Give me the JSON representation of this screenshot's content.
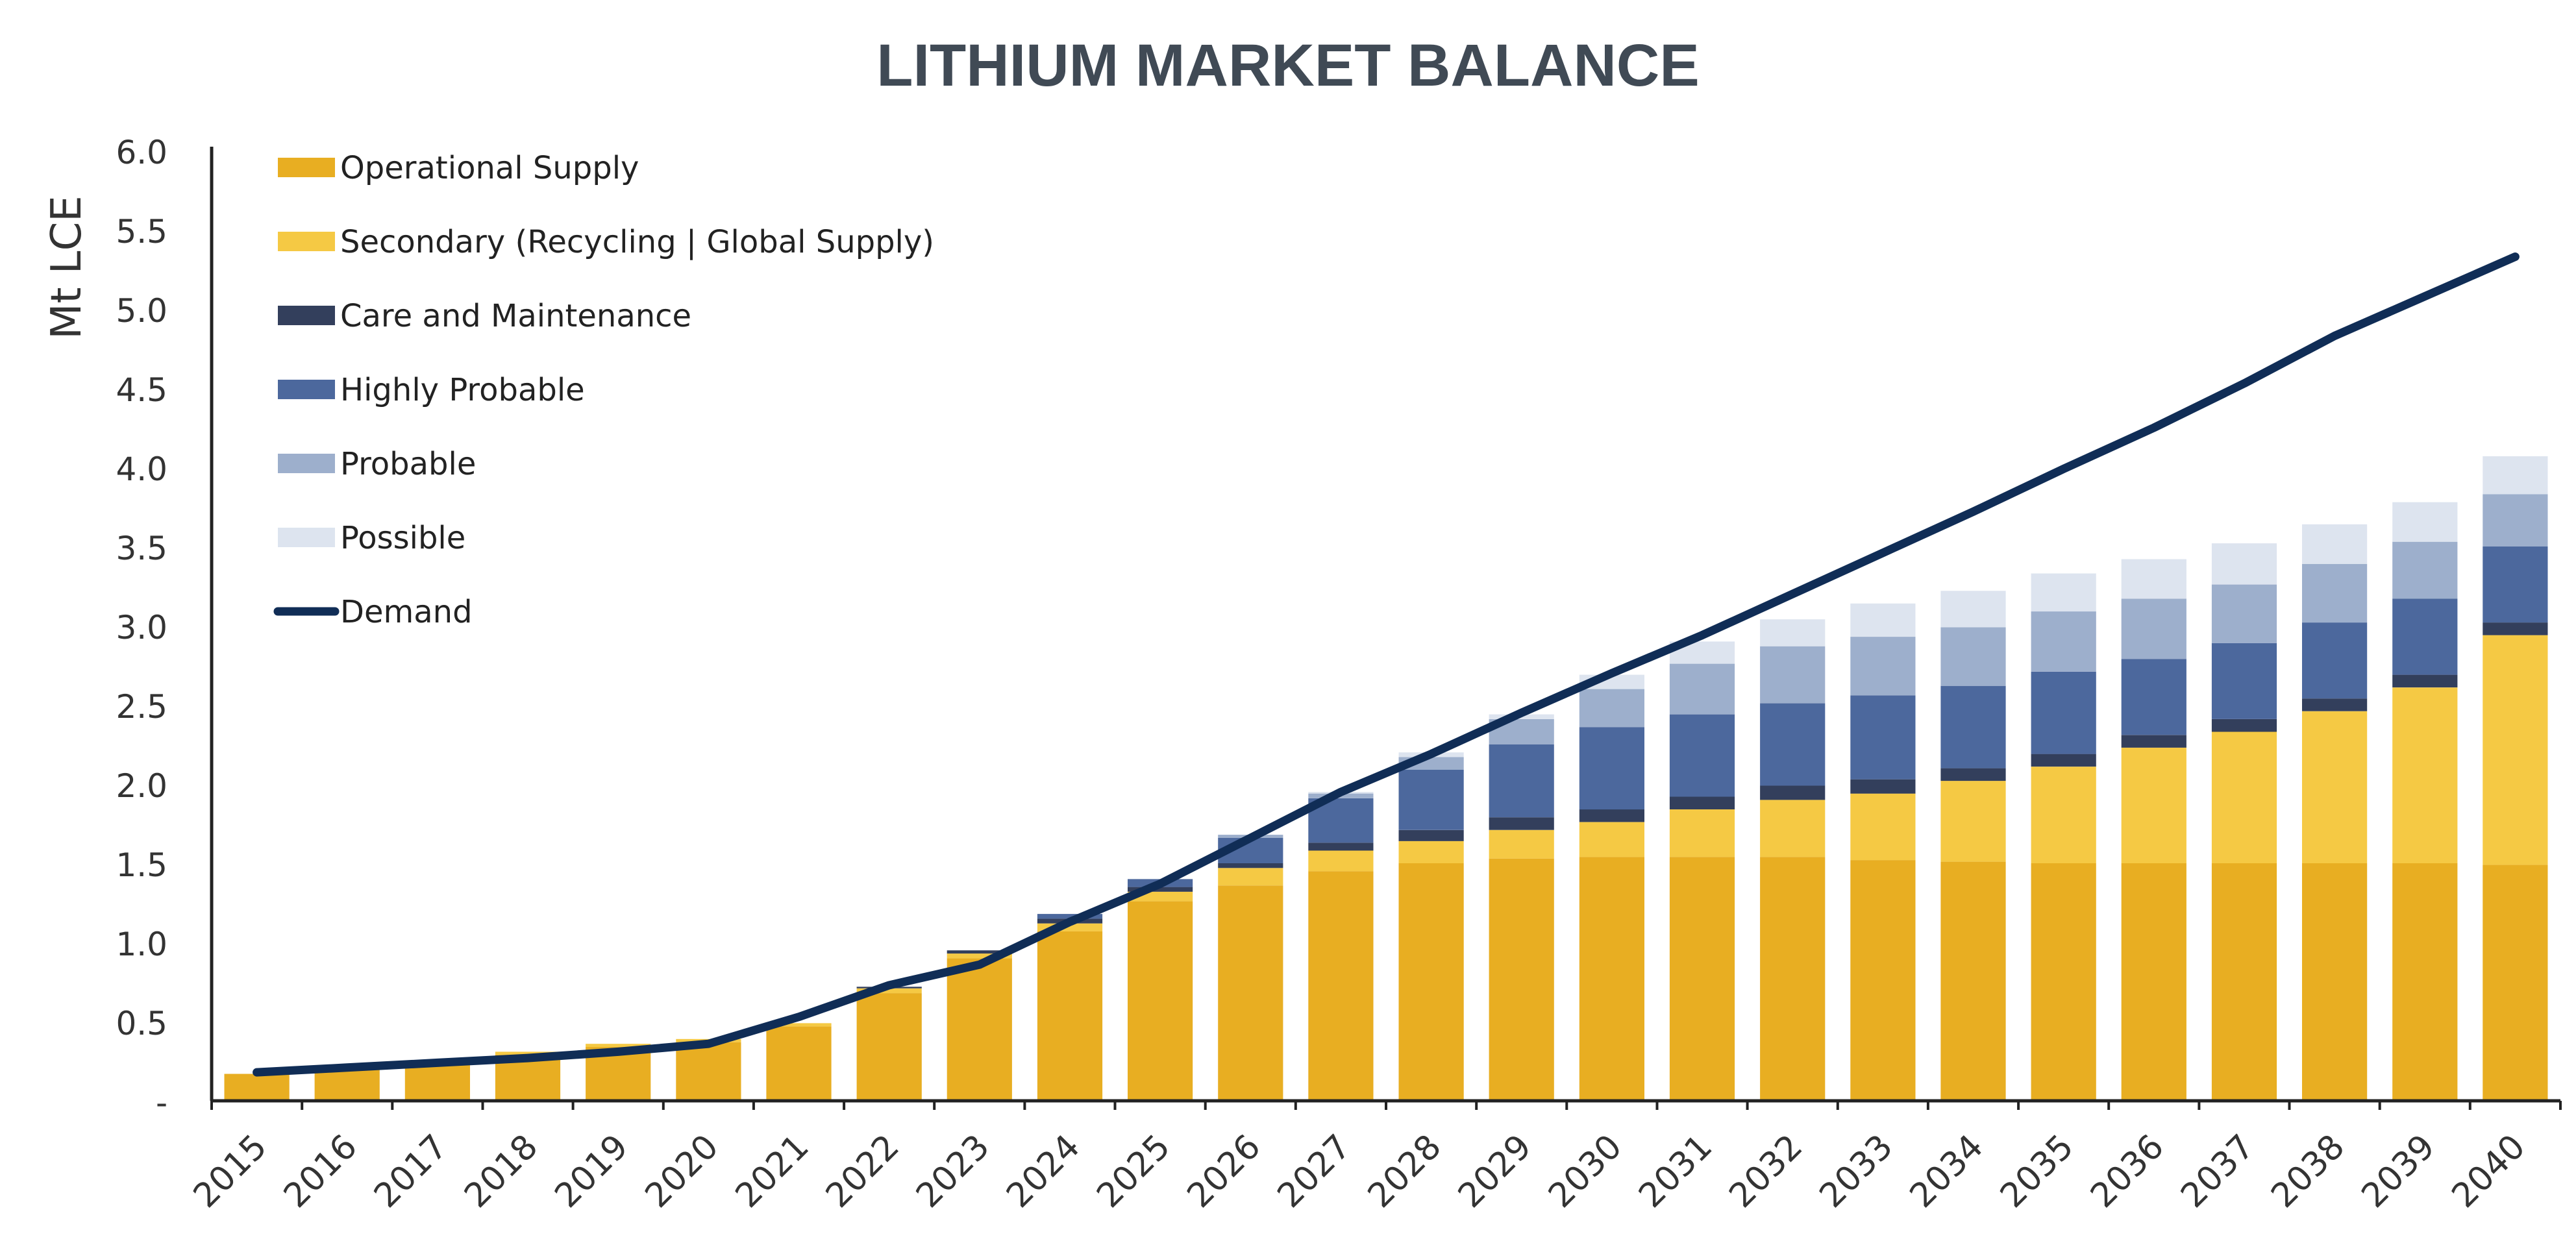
{
  "chart_data": {
    "type": "bar",
    "title": "LITHIUM MARKET BALANCE",
    "ylabel": "Mt LCE",
    "xlabel": "",
    "ylim": [
      0,
      6
    ],
    "yticks": [
      0,
      0.5,
      1.0,
      1.5,
      2.0,
      2.5,
      3.0,
      3.5,
      4.0,
      4.5,
      5.0,
      5.5,
      6.0
    ],
    "ytick_labels": [
      "-",
      "0.5",
      "1.0",
      "1.5",
      "2.0",
      "2.5",
      "3.0",
      "3.5",
      "4.0",
      "4.5",
      "5.0",
      "5.5",
      "6.0"
    ],
    "grid": false,
    "legend_position": "top-left",
    "categories": [
      "2015",
      "2016",
      "2017",
      "2018",
      "2019",
      "2020",
      "2021",
      "2022",
      "2023",
      "2024",
      "2025",
      "2026",
      "2027",
      "2028",
      "2029",
      "2030",
      "2031",
      "2032",
      "2033",
      "2034",
      "2035",
      "2036",
      "2037",
      "2038",
      "2039",
      "2040"
    ],
    "series": [
      {
        "name": "Operational Supply",
        "kind": "bar",
        "color": "#e8ae22",
        "values": [
          0.17,
          0.2,
          0.23,
          0.29,
          0.34,
          0.37,
          0.47,
          0.68,
          0.9,
          1.07,
          1.26,
          1.36,
          1.45,
          1.5,
          1.53,
          1.54,
          1.54,
          1.54,
          1.52,
          1.51,
          1.5,
          1.5,
          1.5,
          1.5,
          1.5,
          1.49
        ]
      },
      {
        "name": "Secondary (Recycling | Global Supply)",
        "kind": "bar",
        "color": "#f5c944",
        "values": [
          0.0,
          0.0,
          0.01,
          0.02,
          0.02,
          0.02,
          0.02,
          0.03,
          0.03,
          0.05,
          0.06,
          0.11,
          0.13,
          0.14,
          0.18,
          0.22,
          0.3,
          0.36,
          0.42,
          0.51,
          0.61,
          0.73,
          0.83,
          0.96,
          1.11,
          1.45
        ]
      },
      {
        "name": "Care and Maintenance",
        "kind": "bar",
        "color": "#333f5c",
        "values": [
          0.0,
          0.0,
          0.0,
          0.0,
          0.0,
          0.0,
          0.0,
          0.01,
          0.02,
          0.03,
          0.03,
          0.03,
          0.05,
          0.07,
          0.08,
          0.08,
          0.08,
          0.09,
          0.09,
          0.08,
          0.08,
          0.08,
          0.08,
          0.08,
          0.08,
          0.08
        ]
      },
      {
        "name": "Highly Probable",
        "kind": "bar",
        "color": "#4c689d",
        "values": [
          0.0,
          0.0,
          0.0,
          0.0,
          0.0,
          0.0,
          0.0,
          0.0,
          0.0,
          0.03,
          0.05,
          0.16,
          0.28,
          0.38,
          0.46,
          0.52,
          0.52,
          0.52,
          0.53,
          0.52,
          0.52,
          0.48,
          0.48,
          0.48,
          0.48,
          0.48
        ]
      },
      {
        "name": "Probable",
        "kind": "bar",
        "color": "#9dafcc",
        "values": [
          0.0,
          0.0,
          0.0,
          0.0,
          0.0,
          0.0,
          0.0,
          0.0,
          0.0,
          0.0,
          0.0,
          0.02,
          0.03,
          0.08,
          0.16,
          0.24,
          0.32,
          0.36,
          0.37,
          0.37,
          0.38,
          0.38,
          0.37,
          0.37,
          0.36,
          0.33
        ]
      },
      {
        "name": "Possible",
        "kind": "bar",
        "color": "#dde4ef",
        "values": [
          0.0,
          0.0,
          0.0,
          0.0,
          0.0,
          0.0,
          0.0,
          0.0,
          0.0,
          0.0,
          0.0,
          0.0,
          0.01,
          0.03,
          0.03,
          0.09,
          0.14,
          0.17,
          0.21,
          0.23,
          0.24,
          0.25,
          0.26,
          0.25,
          0.25,
          0.24
        ]
      },
      {
        "name": "Demand",
        "kind": "line",
        "color": "#102d56",
        "values": [
          0.18,
          0.21,
          0.24,
          0.27,
          0.31,
          0.36,
          0.53,
          0.73,
          0.86,
          1.13,
          1.37,
          1.66,
          1.95,
          2.19,
          2.45,
          2.7,
          2.94,
          3.2,
          3.46,
          3.72,
          3.99,
          4.25,
          4.53,
          4.83,
          5.08,
          5.33
        ]
      }
    ]
  }
}
